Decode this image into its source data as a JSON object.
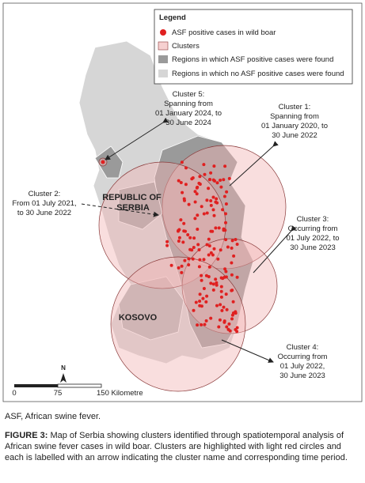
{
  "legend": {
    "title": "Legend",
    "items": [
      "ASF positive cases in wild boar",
      "Clusters",
      "Regions in which ASF positive cases were found",
      "Regions in which no ASF positive cases were found"
    ]
  },
  "map_labels": {
    "country": [
      "REPUBLIC OF",
      "SERBIA"
    ],
    "region": "KOSOVO"
  },
  "clusters": [
    {
      "lines": [
        "Cluster 5:",
        "Spanning from",
        "01 January 2024, to",
        "30 June 2024"
      ]
    },
    {
      "lines": [
        "Cluster 1:",
        "Spanning from",
        "01 January 2020, to",
        "30 June 2022"
      ]
    },
    {
      "lines": [
        "Cluster 2:",
        "From 01 July 2021,",
        "to 30 June 2022"
      ]
    },
    {
      "lines": [
        "Cluster 3:",
        "Occurring from",
        "01 July 2022, to",
        "30 June 2023"
      ]
    },
    {
      "lines": [
        "Cluster 4:",
        "Occurring from",
        "01 July 2022,",
        "30 June 2023"
      ]
    }
  ],
  "north_arrow": "N",
  "scale_bar": [
    "0",
    "75",
    "150 Kilometre"
  ],
  "abbreviations": "ASF, African swine fever.",
  "caption": {
    "label": "FIGURE 3:",
    "text": "Map of Serbia showing clusters identified through spatiotemporal analysis of African swine fever cases in wild boar. Clusters are highlighted with light red circles and each is labelled with an arrow indicating the cluster name and corresponding time period."
  }
}
